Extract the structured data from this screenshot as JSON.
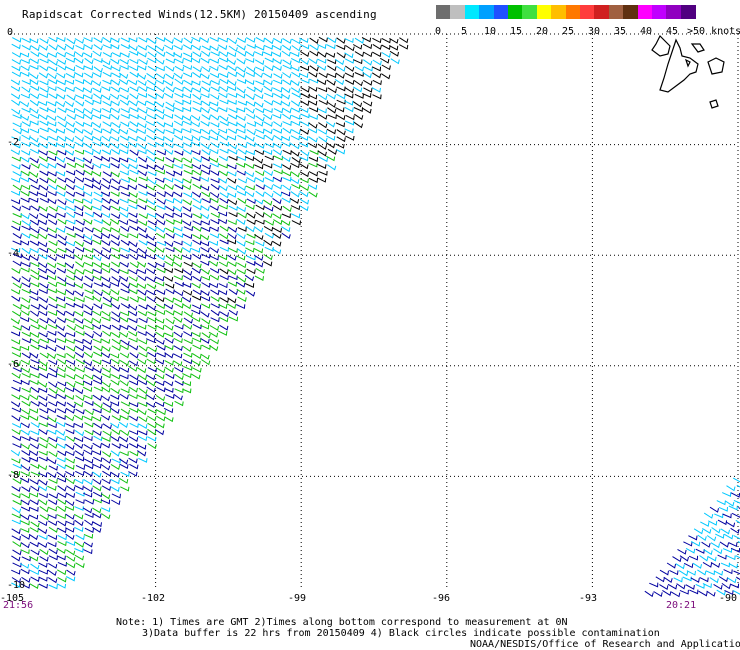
{
  "title": "Rapidscat Corrected Winds(12.5KM) 20150409 ascending",
  "colorbar": {
    "colors": [
      "#6e6e6e",
      "#bfbfbf",
      "#00e8ff",
      "#00a0ff",
      "#2050ff",
      "#00c000",
      "#40e040",
      "#ffff00",
      "#ffbe00",
      "#ff7800",
      "#ff3c3c",
      "#d02020",
      "#a06040",
      "#603010",
      "#ff00ff",
      "#c000ff",
      "#9000c0",
      "#500080"
    ],
    "labels": [
      "0",
      "5",
      "10",
      "15",
      "20",
      "25",
      "30",
      "35",
      "40",
      "45"
    ],
    "last_label": ">50 knots"
  },
  "axes": {
    "y_labels": [
      "0",
      "-2",
      "-4",
      "-6",
      "-8",
      "-10"
    ],
    "x_labels": [
      "-105",
      "-102",
      "-99",
      "-96",
      "-93",
      "-90"
    ]
  },
  "times": {
    "left": "21:56",
    "right": "20:21"
  },
  "notes": [
    "Note: 1) Times are GMT 2)Times along bottom correspond to measurement at 0N",
    "3)Data buffer is 22 hrs from 20150409 4) Black circles indicate possible contamination",
    "NOAA/NESDIS/Office of Research and Applications"
  ],
  "map": {
    "lon_range": [
      -105,
      -90
    ],
    "lat_range": [
      -10,
      0
    ],
    "wind_colors": {
      "calm": "#000000",
      "light": "#00c8ff",
      "moderate": "#0000a0",
      "fresh": "#10c010"
    }
  }
}
